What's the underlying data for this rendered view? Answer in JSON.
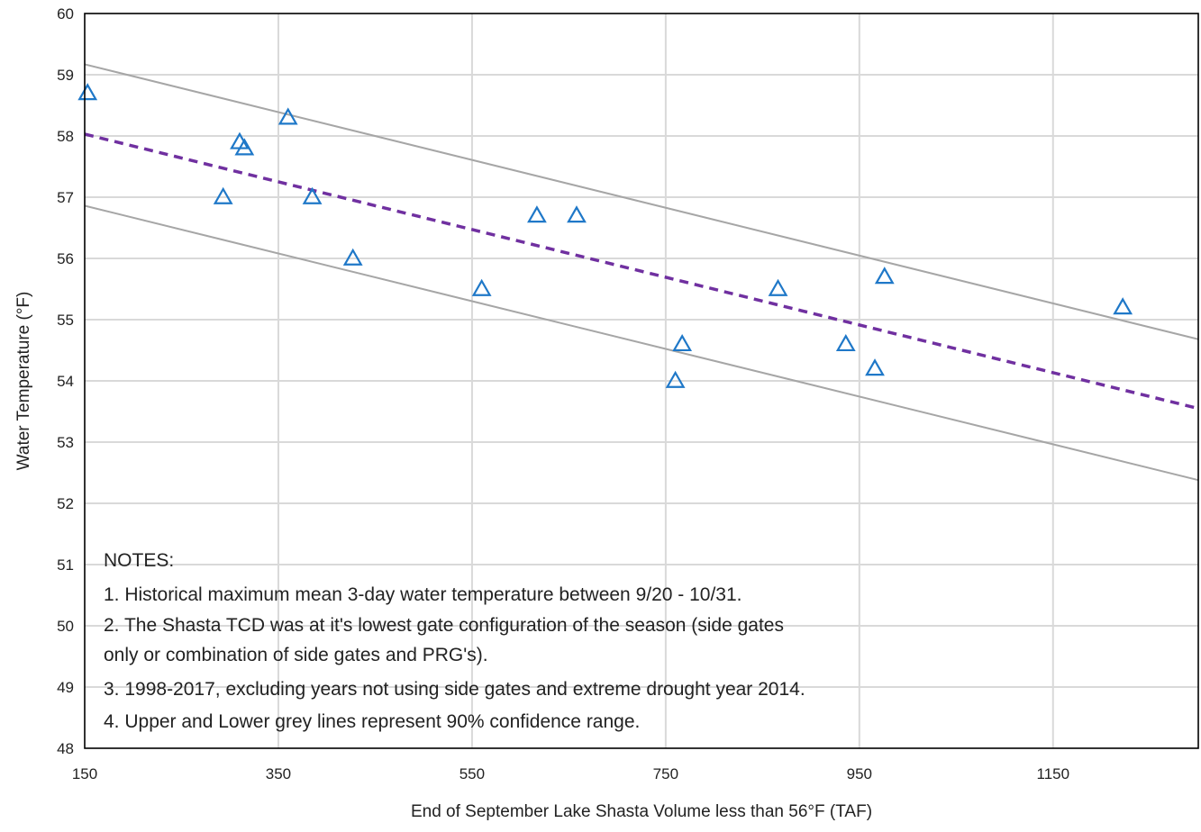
{
  "chart_data": {
    "type": "scatter",
    "xlabel": "End of September Lake Shasta Volume less than 56°F (TAF)",
    "ylabel": "Water Temperature (°F)",
    "xlim": [
      150,
      1300
    ],
    "ylim": [
      48,
      60
    ],
    "x_ticks": [
      150,
      350,
      550,
      750,
      950,
      1150
    ],
    "y_ticks": [
      48,
      49,
      50,
      51,
      52,
      53,
      54,
      55,
      56,
      57,
      58,
      59,
      60
    ],
    "grid": true,
    "marker": "triangle-open",
    "colors": {
      "points": "#1f78c8",
      "trend": "#7030a0",
      "confidence": "#a6a6a6",
      "grid": "#d9d9d9",
      "axis": "#000000"
    },
    "points": [
      {
        "x": 153,
        "y": 58.7
      },
      {
        "x": 293,
        "y": 57.0
      },
      {
        "x": 310,
        "y": 57.9
      },
      {
        "x": 315,
        "y": 57.8
      },
      {
        "x": 360,
        "y": 58.3
      },
      {
        "x": 385,
        "y": 57.0
      },
      {
        "x": 427,
        "y": 56.0
      },
      {
        "x": 560,
        "y": 55.5
      },
      {
        "x": 617,
        "y": 56.7
      },
      {
        "x": 658,
        "y": 56.7
      },
      {
        "x": 760,
        "y": 54.0
      },
      {
        "x": 767,
        "y": 54.6
      },
      {
        "x": 866,
        "y": 55.5
      },
      {
        "x": 936,
        "y": 54.6
      },
      {
        "x": 966,
        "y": 54.2
      },
      {
        "x": 976,
        "y": 55.7
      },
      {
        "x": 1222,
        "y": 55.2
      }
    ],
    "lines": [
      {
        "role": "trend",
        "style": "dashed",
        "x": [
          150,
          1300
        ],
        "y": [
          58.03,
          53.55
        ]
      },
      {
        "role": "upper-confidence",
        "style": "solid",
        "x": [
          150,
          1300
        ],
        "y": [
          59.17,
          54.68
        ]
      },
      {
        "role": "lower-confidence",
        "style": "solid",
        "x": [
          150,
          1300
        ],
        "y": [
          56.86,
          52.38
        ]
      }
    ]
  },
  "notes": {
    "heading": "NOTES:",
    "items": [
      "1. Historical maximum mean 3-day water temperature between 9/20 - 10/31.",
      "2. The Shasta TCD was at it's lowest gate configuration of the season (side gates",
      "only or combination of side gates and PRG's).",
      "3. 1998-2017, excluding years not using side gates and extreme drought year 2014.",
      "4. Upper and Lower grey lines represent 90% confidence range."
    ]
  }
}
